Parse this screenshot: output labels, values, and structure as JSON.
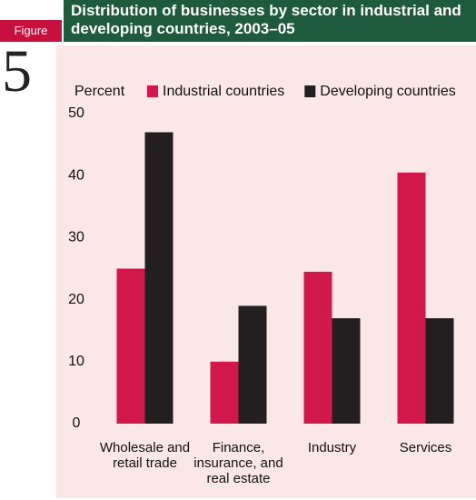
{
  "figure_label": "Figure",
  "figure_number": "5",
  "chart_data": {
    "type": "bar",
    "title": "Distribution of businesses by sector in industrial and developing countries, 2003–05",
    "y_label": "Percent",
    "categories": [
      "Wholesale and retail trade",
      "Finance, insurance, and real estate",
      "Industry",
      "Services"
    ],
    "series": [
      {
        "name": "Industrial countries",
        "color": "#d2184a",
        "values": [
          25,
          10,
          24.5,
          40.5
        ]
      },
      {
        "name": "Developing countries",
        "color": "#231f20",
        "values": [
          47,
          19,
          17,
          17
        ]
      }
    ],
    "ylim": [
      0,
      50
    ],
    "yticks": [
      0,
      10,
      20,
      30,
      40,
      50
    ],
    "grid": false
  }
}
